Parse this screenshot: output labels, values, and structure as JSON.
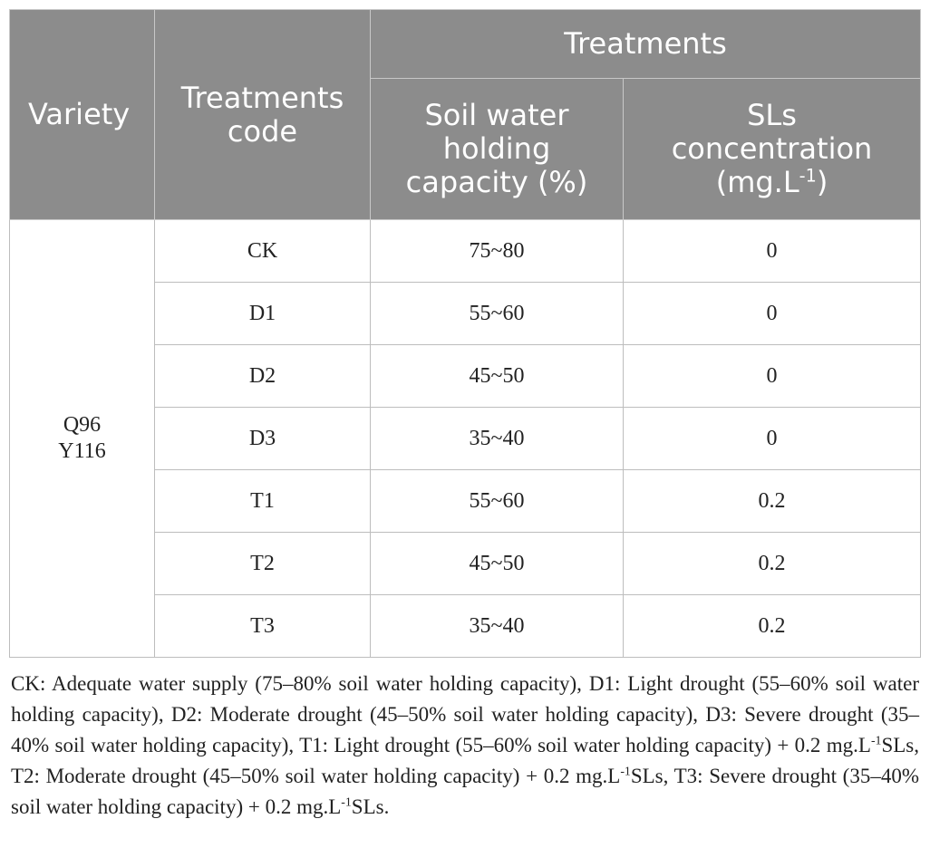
{
  "table": {
    "headers": {
      "variety": "Variety",
      "treatments_code": "Treatments code",
      "treatments": "Treatments",
      "soil_water": "Soil water holding capacity (%)",
      "sls_concentration": "SLs concentration (mg.L",
      "sls_unit_sup": "-1",
      "sls_close": ")"
    },
    "variety_lines": [
      "Q96",
      "Y116"
    ],
    "rows": [
      {
        "code": "CK",
        "soil": "75~80",
        "sls": "0"
      },
      {
        "code": "D1",
        "soil": "55~60",
        "sls": "0"
      },
      {
        "code": "D2",
        "soil": "45~50",
        "sls": "0"
      },
      {
        "code": "D3",
        "soil": "35~40",
        "sls": "0"
      },
      {
        "code": "T1",
        "soil": "55~60",
        "sls": "0.2"
      },
      {
        "code": "T2",
        "soil": "45~50",
        "sls": "0.2"
      },
      {
        "code": "T3",
        "soil": "35~40",
        "sls": "0.2"
      }
    ]
  },
  "footnote": {
    "part1": "CK: Adequate water supply (75–80% soil water holding capacity), D1: Light drought (55–60% soil water holding capacity), D2: Moderate drought (45–50% soil water holding capacity), D3: Severe drought (35–40% soil water holding capacity), T1: Light drought (55–60% soil water holding capacity) + 0.2 mg.L",
    "sup1": "-1",
    "part2": "SLs, T2: Moderate drought (45–50% soil water holding capacity) + 0.2 mg.L",
    "sup2": "-1",
    "part3": "SLs, T3: Severe drought (35–40% soil water holding capacity) + 0.2 mg.L",
    "sup3": "-1",
    "part4": "SLs."
  }
}
